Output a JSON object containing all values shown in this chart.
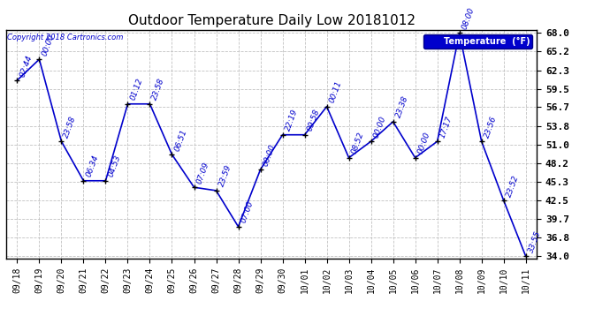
{
  "title": "Outdoor Temperature Daily Low 20181012",
  "copyright": "Copyright 2018 Cartronics.com",
  "legend_label": "Temperature  (°F)",
  "x_labels": [
    "09/18",
    "09/19",
    "09/20",
    "09/21",
    "09/22",
    "09/23",
    "09/24",
    "09/25",
    "09/26",
    "09/27",
    "09/28",
    "09/29",
    "09/30",
    "10/01",
    "10/02",
    "10/03",
    "10/04",
    "10/05",
    "10/06",
    "10/07",
    "10/08",
    "10/09",
    "10/10",
    "10/11"
  ],
  "y_values": [
    60.8,
    64.0,
    51.5,
    45.5,
    45.5,
    57.2,
    57.2,
    49.5,
    44.5,
    44.0,
    38.5,
    47.2,
    52.5,
    52.5,
    56.8,
    49.0,
    51.5,
    54.5,
    49.0,
    51.5,
    68.0,
    51.5,
    42.5,
    34.0
  ],
  "point_labels": [
    "02:44",
    "00:00",
    "23:58",
    "06:34",
    "04:53",
    "01:12",
    "23:58",
    "06:51",
    "07:09",
    "23:59",
    "07:00",
    "00:00",
    "22:19",
    "09:58",
    "00:11",
    "08:52",
    "00:00",
    "23:38",
    "00:00",
    "17:17",
    "08:00",
    "23:56",
    "23:52",
    "33:55"
  ],
  "line_color": "#0000cc",
  "marker_color": "#000000",
  "bg_color": "#ffffff",
  "grid_color": "#bbbbbb",
  "title_fontsize": 11,
  "label_fontsize": 7,
  "point_label_fontsize": 6.5,
  "ylim_min": 34.0,
  "ylim_max": 68.0,
  "yticks": [
    34.0,
    36.8,
    39.7,
    42.5,
    45.3,
    48.2,
    51.0,
    53.8,
    56.7,
    59.5,
    62.3,
    65.2,
    68.0
  ]
}
